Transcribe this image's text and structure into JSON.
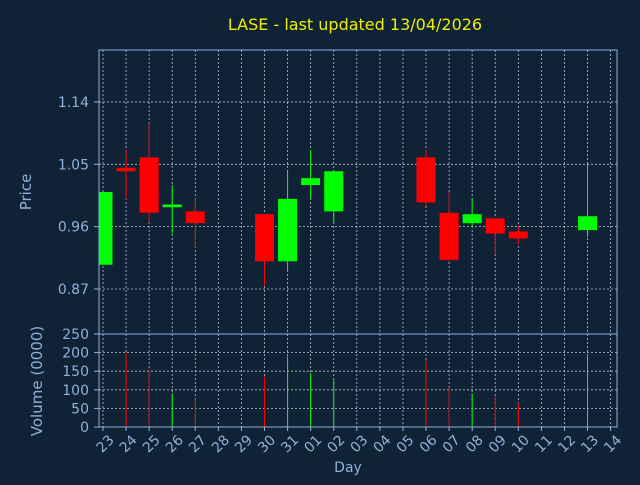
{
  "colors": {
    "background": "#0f2236",
    "title": "#f0f000",
    "axis_text": "#8fb2d9",
    "axis_line": "#8fb2d9",
    "grid": "#b8c4d0",
    "up": "#00ff00",
    "down": "#ff0000"
  },
  "chart_data": {
    "type": "candlestick",
    "title": "LASE - last updated 13/04/2026",
    "price_panel": {
      "ylabel": "Price",
      "ylim": [
        0.805,
        1.215
      ],
      "yticks": [
        0.87,
        0.96,
        1.05,
        1.14
      ],
      "ytick_labels": [
        "0.87",
        "0.96",
        "1.05",
        "1.14"
      ]
    },
    "volume_panel": {
      "ylabel": "Volume (0000)",
      "ylim": [
        0,
        250
      ],
      "yticks": [
        0,
        50,
        100,
        150,
        200,
        250
      ],
      "ytick_labels": [
        "0",
        "50",
        "100",
        "150",
        "200",
        "250"
      ]
    },
    "xlabel": "Day",
    "x_tick_labels": [
      "23",
      "24",
      "25",
      "26",
      "27",
      "28",
      "29",
      "30",
      "31",
      "01",
      "02",
      "03",
      "04",
      "05",
      "06",
      "07",
      "08",
      "09",
      "10",
      "11",
      "12",
      "13",
      "14"
    ],
    "grid": true,
    "candles": [
      {
        "day": "23",
        "open": 0.905,
        "high": 1.01,
        "low": 0.905,
        "close": 1.01
      },
      {
        "day": "24",
        "open": 1.045,
        "high": 1.07,
        "low": 1.0,
        "close": 1.04
      },
      {
        "day": "25",
        "open": 1.06,
        "high": 1.11,
        "low": 0.965,
        "close": 0.98
      },
      {
        "day": "26",
        "open": 0.988,
        "high": 1.02,
        "low": 0.95,
        "close": 0.992
      },
      {
        "day": "27",
        "open": 0.982,
        "high": 1.0,
        "low": 0.93,
        "close": 0.965
      },
      {
        "day": "30",
        "open": 0.978,
        "high": 0.978,
        "low": 0.875,
        "close": 0.91
      },
      {
        "day": "31",
        "open": 0.91,
        "high": 1.04,
        "low": 0.895,
        "close": 1.0
      },
      {
        "day": "01",
        "open": 1.02,
        "high": 1.07,
        "low": 1.0,
        "close": 1.03
      },
      {
        "day": "02",
        "open": 0.982,
        "high": 1.04,
        "low": 0.965,
        "close": 1.04
      },
      {
        "day": "06",
        "open": 1.06,
        "high": 1.07,
        "low": 0.99,
        "close": 0.995
      },
      {
        "day": "07",
        "open": 0.98,
        "high": 1.01,
        "low": 0.91,
        "close": 0.912
      },
      {
        "day": "08",
        "open": 0.965,
        "high": 1.0,
        "low": 0.96,
        "close": 0.978
      },
      {
        "day": "09",
        "open": 0.972,
        "high": 0.972,
        "low": 0.92,
        "close": 0.95
      },
      {
        "day": "10",
        "open": 0.953,
        "high": 0.96,
        "low": 0.935,
        "close": 0.943
      },
      {
        "day": "13",
        "open": 0.955,
        "high": 1.05,
        "low": 0.945,
        "close": 0.975
      }
    ],
    "volume": [
      {
        "day": "24",
        "value": 200,
        "direction": "down"
      },
      {
        "day": "25",
        "value": 155,
        "direction": "down"
      },
      {
        "day": "26",
        "value": 90,
        "direction": "up"
      },
      {
        "day": "27",
        "value": 75,
        "direction": "down"
      },
      {
        "day": "30",
        "value": 135,
        "direction": "down"
      },
      {
        "day": "31",
        "value": 190,
        "direction": "up"
      },
      {
        "day": "01",
        "value": 145,
        "direction": "up"
      },
      {
        "day": "02",
        "value": 125,
        "direction": "up"
      },
      {
        "day": "06",
        "value": 180,
        "direction": "down"
      },
      {
        "day": "07",
        "value": 105,
        "direction": "down"
      },
      {
        "day": "08",
        "value": 90,
        "direction": "up"
      },
      {
        "day": "09",
        "value": 85,
        "direction": "down"
      },
      {
        "day": "10",
        "value": 65,
        "direction": "down"
      },
      {
        "day": "13",
        "value": 190,
        "direction": "up"
      }
    ]
  }
}
